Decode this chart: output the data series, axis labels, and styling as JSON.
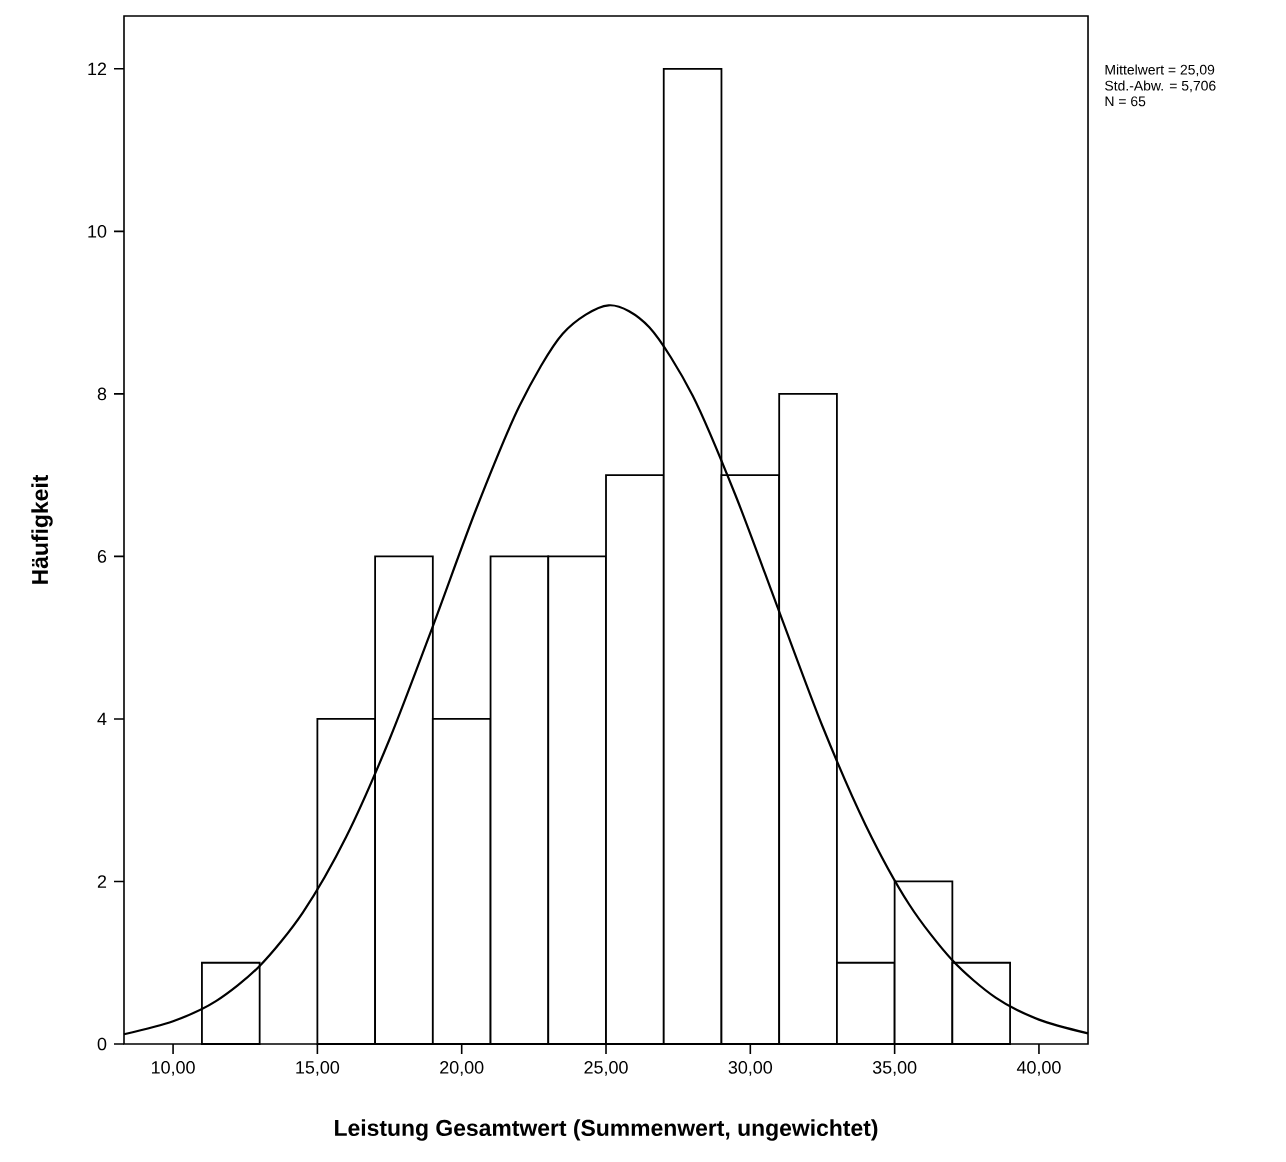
{
  "chart_data": {
    "type": "histogram",
    "xlabel": "Leistung Gesamtwert (Summenwert, ungewichtet)",
    "ylabel": "Häufigkeit",
    "bins": [
      11,
      13,
      15,
      17,
      19,
      21,
      23,
      25,
      27,
      29,
      31,
      33,
      35,
      37,
      39
    ],
    "values": [
      1,
      0,
      4,
      6,
      4,
      6,
      6,
      7,
      12,
      7,
      8,
      1,
      2,
      1
    ],
    "color": "#ffffff",
    "series": [
      {
        "type": "line",
        "color": "#000000",
        "x": [
          8.3,
          10,
          11.5,
          13,
          14.5,
          16,
          17.5,
          19,
          20.5,
          22,
          23.5,
          25.09,
          26.5,
          28,
          29.5,
          31,
          32.5,
          34,
          35.5,
          37,
          38.5,
          40,
          41.7
        ],
        "values": [
          0.12,
          0.28,
          0.53,
          0.96,
          1.62,
          2.55,
          3.75,
          5.14,
          6.58,
          7.85,
          8.74,
          9.09,
          8.82,
          7.98,
          6.74,
          5.32,
          3.91,
          2.69,
          1.72,
          1.03,
          0.57,
          0.3,
          0.13
        ]
      }
    ],
    "xlim": [
      8.3,
      41.7
    ],
    "ylim": [
      0,
      12.65
    ],
    "xticks": [
      {
        "value": 10,
        "label": "10,00"
      },
      {
        "value": 15,
        "label": "15,00"
      },
      {
        "value": 20,
        "label": "20,00"
      },
      {
        "value": 25,
        "label": "25,00"
      },
      {
        "value": 30,
        "label": "30,00"
      },
      {
        "value": 35,
        "label": "35,00"
      },
      {
        "value": 40,
        "label": "40,00"
      }
    ],
    "yticks": [
      0,
      2,
      4,
      6,
      8,
      10,
      12
    ],
    "annotations": [
      "Mittelwert =  25,09",
      "Std.-Abw. =  5,706",
      "N =  65"
    ],
    "grid": false
  }
}
